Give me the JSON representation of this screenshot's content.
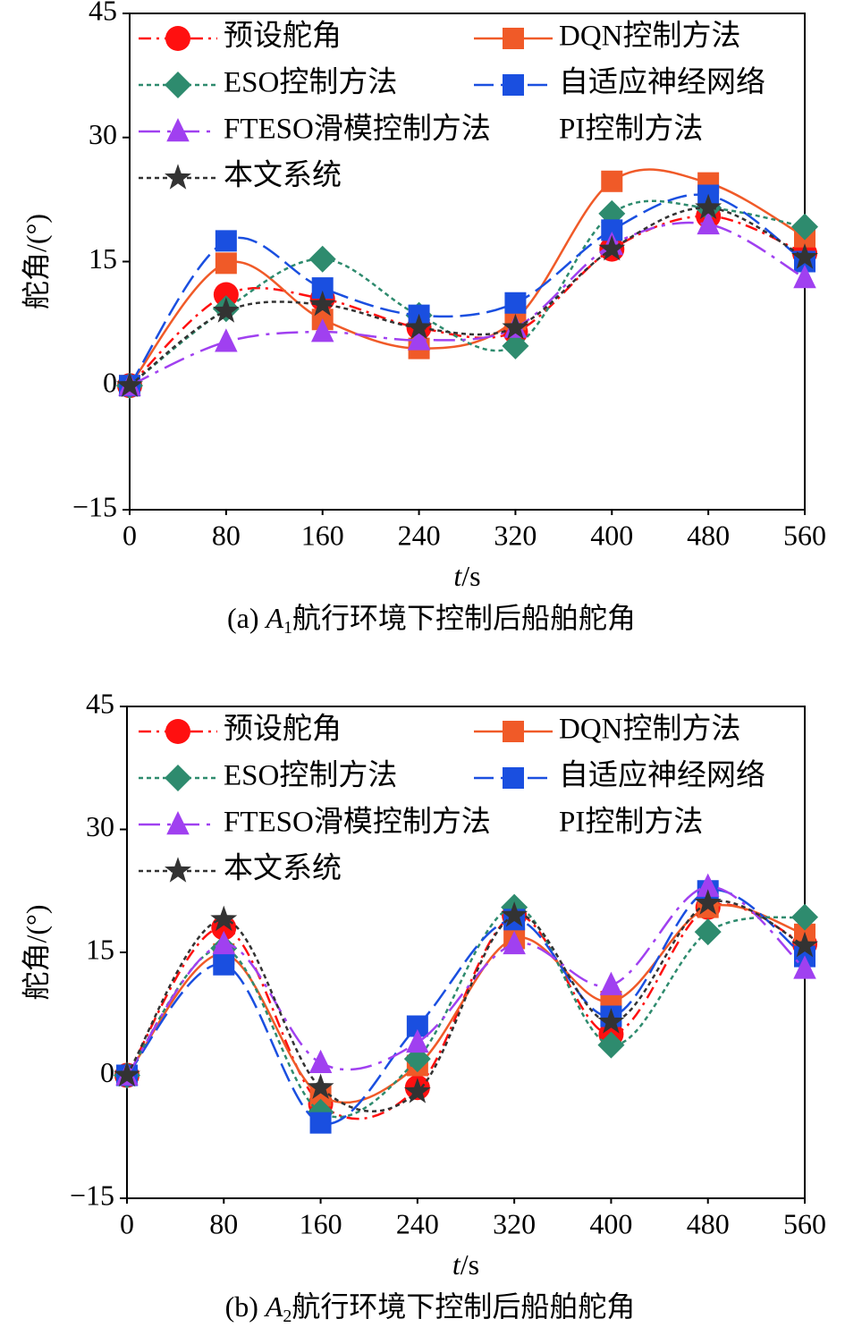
{
  "chart_data": [
    {
      "type": "line",
      "caption_prefix": "(a)",
      "caption_var": "A",
      "caption_sub": "1",
      "caption_text": "航行环境下控制后船舶舵角",
      "x_label_var": "t",
      "x_label_unit": "/s",
      "y_label": "舵角/(°)",
      "x": [
        0,
        80,
        160,
        240,
        320,
        400,
        480,
        560
      ],
      "xlim": [
        0,
        560
      ],
      "xticks": [
        0,
        80,
        160,
        240,
        320,
        400,
        480,
        560
      ],
      "ylim": [
        -15,
        45
      ],
      "yticks": [
        {
          "value": -15,
          "label": "−15"
        },
        0,
        15,
        30,
        45
      ],
      "series": [
        {
          "name": "预设舵角",
          "color": "#ff1010",
          "marker": "circle",
          "linestyle": "dashdot",
          "values": [
            0,
            11,
            10.5,
            7,
            6.5,
            16.5,
            20.5,
            16
          ]
        },
        {
          "name": "DQN控制方法",
          "color": "#f05a28",
          "marker": "square",
          "linestyle": "solid",
          "values": [
            0,
            14.8,
            8,
            4.5,
            8,
            24.7,
            24.5,
            18
          ]
        },
        {
          "name": "ESO控制方法",
          "color": "#2e8b6e",
          "marker": "diamond",
          "linestyle": "dotted",
          "values": [
            0,
            9.3,
            15.3,
            8.5,
            4.8,
            20.8,
            21.5,
            19.2
          ]
        },
        {
          "name": "自适应神经网络",
          "color": "#1a4fe0",
          "marker": "square",
          "linestyle": "longdash",
          "values": [
            0,
            17.5,
            11.8,
            8.5,
            10,
            18.8,
            23,
            15
          ]
        },
        {
          "name": "FTESO滑模控制方法",
          "color": "#a040f0",
          "marker": "triangle",
          "linestyle": "longdashdot",
          "values": [
            0,
            5.3,
            6.5,
            5.5,
            7,
            17,
            19.5,
            13
          ]
        },
        {
          "name": "PI控制方法",
          "values": [
            null,
            null,
            null,
            null,
            null,
            null,
            null,
            null
          ]
        },
        {
          "name": "本文系统",
          "color": "#333333",
          "marker": "star",
          "linestyle": "dotted",
          "values": [
            0,
            9,
            9.8,
            7,
            7,
            16.5,
            21.5,
            15.5
          ]
        }
      ]
    },
    {
      "type": "line",
      "caption_prefix": "(b)",
      "caption_var": "A",
      "caption_sub": "2",
      "caption_text": "航行环境下控制后船舶舵角",
      "x_label_var": "t",
      "x_label_unit": "/s",
      "y_label": "舵角/(°)",
      "x": [
        0,
        80,
        160,
        240,
        320,
        400,
        480,
        560
      ],
      "xlim": [
        0,
        560
      ],
      "xticks": [
        0,
        80,
        160,
        240,
        320,
        400,
        480,
        560
      ],
      "ylim": [
        -15,
        45
      ],
      "yticks": [
        {
          "value": -15,
          "label": "−15"
        },
        0,
        15,
        30,
        45
      ],
      "series": [
        {
          "name": "预设舵角",
          "color": "#ff1010",
          "marker": "circle",
          "linestyle": "dashdot",
          "values": [
            0,
            18,
            -3.5,
            -1.5,
            19.5,
            5,
            20.5,
            16
          ]
        },
        {
          "name": "DQN控制方法",
          "color": "#f05a28",
          "marker": "square",
          "linestyle": "solid",
          "values": [
            0,
            14.8,
            -2.5,
            1.2,
            16.7,
            9,
            20.5,
            17.2
          ]
        },
        {
          "name": "ESO控制方法",
          "color": "#2e8b6e",
          "marker": "diamond",
          "linestyle": "dotted",
          "values": [
            0,
            15.5,
            -4.5,
            2,
            20.5,
            3.7,
            17.5,
            19.3
          ]
        },
        {
          "name": "自适应神经网络",
          "color": "#1a4fe0",
          "marker": "square",
          "linestyle": "longdash",
          "values": [
            0,
            13.5,
            -5.8,
            6,
            19,
            7.2,
            22.5,
            14.5
          ]
        },
        {
          "name": "FTESO滑模控制方法",
          "color": "#a040f0",
          "marker": "triangle",
          "linestyle": "longdashdot",
          "values": [
            0,
            16,
            1.5,
            4,
            16,
            11,
            23,
            13
          ]
        },
        {
          "name": "PI控制方法",
          "values": [
            null,
            null,
            null,
            null,
            null,
            null,
            null,
            null
          ]
        },
        {
          "name": "本文系统",
          "color": "#333333",
          "marker": "star",
          "linestyle": "dotted",
          "values": [
            0,
            19,
            -1.5,
            -2,
            19.5,
            6.5,
            21,
            15.8
          ]
        }
      ]
    }
  ]
}
